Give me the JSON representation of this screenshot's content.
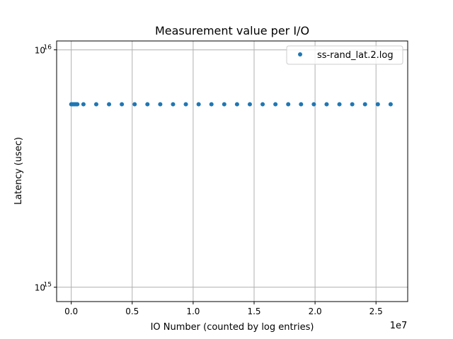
{
  "chart_data": {
    "type": "scatter",
    "title": "Measurement value per I/O",
    "xlabel": "IO Number (counted by log entries)",
    "ylabel": "Latency (usec)",
    "x_offset_label": "1e7",
    "xlim": [
      -1200000,
      27600000
    ],
    "ylim": [
      870000000000000.0,
      1.09e+16
    ],
    "yscale": "log",
    "grid": true,
    "legend_position": "top-right",
    "x_ticks": [
      {
        "value": 0,
        "label": "0.0"
      },
      {
        "value": 5000000,
        "label": "0.5"
      },
      {
        "value": 10000000,
        "label": "1.0"
      },
      {
        "value": 15000000,
        "label": "1.5"
      },
      {
        "value": 20000000,
        "label": "2.0"
      },
      {
        "value": 25000000,
        "label": "2.5"
      }
    ],
    "y_ticks": [
      {
        "value": 1000000000000000.0,
        "base": "10",
        "exp": "15"
      },
      {
        "value": 1e+16,
        "base": "10",
        "exp": "16"
      }
    ],
    "series": [
      {
        "name": "ss-rand_lat.2.log",
        "color": "#1f77b4",
        "x": [
          0,
          100000,
          200000,
          300000,
          400000,
          500000,
          1000000,
          2050000,
          3100000,
          4150000,
          5200000,
          6250000,
          7300000,
          8350000,
          9400000,
          10450000,
          11500000,
          12550000,
          13600000,
          14650000,
          15700000,
          16750000,
          17800000,
          18850000,
          19900000,
          20950000,
          22000000,
          23050000,
          24100000,
          25150000,
          26200000
        ],
        "y": [
          5900000000000000.0,
          5900000000000000.0,
          5900000000000000.0,
          5900000000000000.0,
          5900000000000000.0,
          5900000000000000.0,
          5900000000000000.0,
          5900000000000000.0,
          5900000000000000.0,
          5900000000000000.0,
          5900000000000000.0,
          5900000000000000.0,
          5900000000000000.0,
          5900000000000000.0,
          5900000000000000.0,
          5900000000000000.0,
          5900000000000000.0,
          5900000000000000.0,
          5900000000000000.0,
          5900000000000000.0,
          5900000000000000.0,
          5900000000000000.0,
          5900000000000000.0,
          5900000000000000.0,
          5900000000000000.0,
          5900000000000000.0,
          5900000000000000.0,
          5900000000000000.0,
          5900000000000000.0,
          5900000000000000.0,
          5900000000000000.0
        ]
      }
    ]
  }
}
